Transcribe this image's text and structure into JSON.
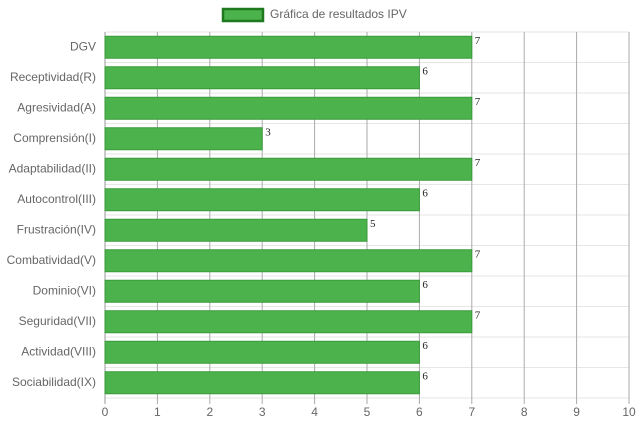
{
  "chart_data": {
    "type": "bar",
    "orientation": "horizontal",
    "categories": [
      "DGV",
      "Receptividad(R)",
      "Agresividad(A)",
      "Comprensión(I)",
      "Adaptabilidad(II)",
      "Autocontrol(III)",
      "Frustración(IV)",
      "Combatividad(V)",
      "Dominio(VI)",
      "Seguridad(VII)",
      "Actividad(VIII)",
      "Sociabilidad(IX)"
    ],
    "series": [
      {
        "name": "Gráfica de resultados IPV",
        "color": "#4cb34c",
        "values": [
          7,
          6,
          7,
          3,
          7,
          6,
          5,
          7,
          6,
          7,
          6,
          6
        ]
      }
    ],
    "xlim": [
      0,
      10
    ],
    "xticks": [
      0,
      1,
      2,
      3,
      4,
      5,
      6,
      7,
      8,
      9,
      10
    ],
    "grid": true,
    "legend_position": "top"
  }
}
